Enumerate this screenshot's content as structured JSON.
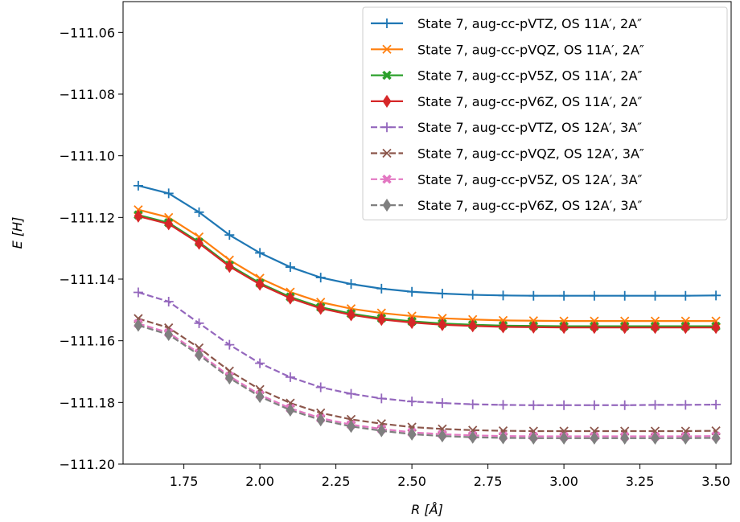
{
  "chart_data": {
    "type": "line",
    "xlabel": "R [Å]",
    "ylabel": "E [H]",
    "xlim": [
      1.55,
      3.55
    ],
    "ylim": [
      -111.2,
      -111.05
    ],
    "xticks": [
      1.75,
      2.0,
      2.25,
      2.5,
      2.75,
      3.0,
      3.25,
      3.5
    ],
    "xtick_labels": [
      "1.75",
      "2.00",
      "2.25",
      "2.50",
      "2.75",
      "3.00",
      "3.25",
      "3.50"
    ],
    "yticks": [
      -111.06,
      -111.08,
      -111.1,
      -111.12,
      -111.14,
      -111.16,
      -111.18,
      -111.2
    ],
    "ytick_labels": [
      "−111.06",
      "−111.08",
      "−111.10",
      "−111.12",
      "−111.14",
      "−111.16",
      "−111.18",
      "−111.20"
    ],
    "grid": false,
    "legend_position": "top-right",
    "x": [
      1.6,
      1.7,
      1.8,
      1.9,
      2.0,
      2.1,
      2.2,
      2.3,
      2.4,
      2.5,
      2.6,
      2.7,
      2.8,
      2.9,
      3.0,
      3.1,
      3.2,
      3.3,
      3.4,
      3.5
    ],
    "series": [
      {
        "name": "State 7, aug-cc-pVTZ, OS 11A′, 2A″",
        "color": "#1f77b4",
        "dash": "solid",
        "marker": "plus",
        "values": [
          -111.1097,
          -111.1122,
          -111.1183,
          -111.1257,
          -111.1315,
          -111.1361,
          -111.1395,
          -111.1416,
          -111.1431,
          -111.1441,
          -111.1447,
          -111.1451,
          -111.1453,
          -111.1454,
          -111.1454,
          -111.1454,
          -111.1454,
          -111.1454,
          -111.1454,
          -111.1453
        ]
      },
      {
        "name": "State 7, aug-cc-pVQZ, OS 11A′, 2A″",
        "color": "#ff7f0e",
        "dash": "solid",
        "marker": "x",
        "values": [
          -111.1175,
          -111.12,
          -111.1263,
          -111.1338,
          -111.1397,
          -111.1442,
          -111.1475,
          -111.1496,
          -111.151,
          -111.152,
          -111.1527,
          -111.1531,
          -111.1534,
          -111.1535,
          -111.1536,
          -111.1536,
          -111.1536,
          -111.1536,
          -111.1536,
          -111.1536
        ]
      },
      {
        "name": "State 7, aug-cc-pV5Z, OS 11A′, 2A″",
        "color": "#2ca02c",
        "dash": "solid",
        "marker": "X",
        "values": [
          -111.1192,
          -111.1217,
          -111.128,
          -111.1355,
          -111.1413,
          -111.1458,
          -111.1491,
          -111.1512,
          -111.1527,
          -111.1537,
          -111.1544,
          -111.1548,
          -111.1551,
          -111.1552,
          -111.1553,
          -111.1553,
          -111.1553,
          -111.1553,
          -111.1553,
          -111.1553
        ]
      },
      {
        "name": "State 7, aug-cc-pV6Z, OS 11A′, 2A″",
        "color": "#d62728",
        "dash": "solid",
        "marker": "diamond",
        "values": [
          -111.1196,
          -111.1221,
          -111.1284,
          -111.1359,
          -111.1417,
          -111.1462,
          -111.1495,
          -111.1516,
          -111.1531,
          -111.1541,
          -111.1548,
          -111.1552,
          -111.1555,
          -111.1556,
          -111.1557,
          -111.1557,
          -111.1557,
          -111.1557,
          -111.1557,
          -111.1557
        ]
      },
      {
        "name": "State 7, aug-cc-pVTZ, OS 12A′, 3A″",
        "color": "#9467bd",
        "dash": "dashed",
        "marker": "plus",
        "values": [
          -111.1443,
          -111.1473,
          -111.1543,
          -111.1613,
          -111.1673,
          -111.1718,
          -111.1751,
          -111.1772,
          -111.1787,
          -111.1797,
          -111.1802,
          -111.1806,
          -111.1808,
          -111.1809,
          -111.1809,
          -111.1809,
          -111.1809,
          -111.1808,
          -111.1808,
          -111.1807
        ]
      },
      {
        "name": "State 7, aug-cc-pVQZ, OS 12A′, 3A″",
        "color": "#8c564b",
        "dash": "dashed",
        "marker": "x",
        "values": [
          -111.1528,
          -111.1558,
          -111.1623,
          -111.1698,
          -111.1758,
          -111.1802,
          -111.1834,
          -111.1855,
          -111.1869,
          -111.188,
          -111.1886,
          -111.189,
          -111.1892,
          -111.1893,
          -111.1893,
          -111.1893,
          -111.1893,
          -111.1893,
          -111.1893,
          -111.1892
        ]
      },
      {
        "name": "State 7, aug-cc-pV5Z, OS 12A′, 3A″",
        "color": "#e377c2",
        "dash": "dashed",
        "marker": "X",
        "values": [
          -111.1544,
          -111.1574,
          -111.164,
          -111.1715,
          -111.1775,
          -111.1819,
          -111.1851,
          -111.1872,
          -111.1886,
          -111.1897,
          -111.1903,
          -111.1907,
          -111.1909,
          -111.191,
          -111.191,
          -111.191,
          -111.191,
          -111.191,
          -111.191,
          -111.1909
        ]
      },
      {
        "name": "State 7, aug-cc-pV6Z, OS 12A′, 3A″",
        "color": "#7f7f7f",
        "dash": "dashed",
        "marker": "diamond",
        "values": [
          -111.155,
          -111.158,
          -111.1646,
          -111.1721,
          -111.1781,
          -111.1825,
          -111.1857,
          -111.1878,
          -111.1892,
          -111.1903,
          -111.1909,
          -111.1913,
          -111.1915,
          -111.1916,
          -111.1916,
          -111.1916,
          -111.1916,
          -111.1916,
          -111.1916,
          -111.1915
        ]
      }
    ]
  }
}
